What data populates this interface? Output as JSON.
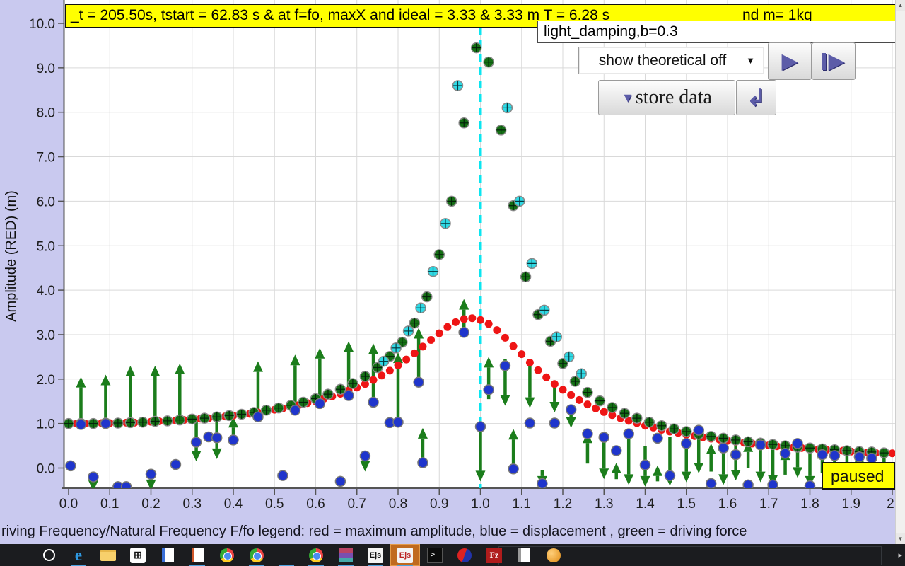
{
  "title_bar": {
    "segment1": "_t = 205.50s, tstart = 62.83 s & at f=fo, maxX and ideal = 3.33 & 3.33 m T = 6.28 s",
    "segment2": "nd m= 1kg"
  },
  "preset_field": {
    "value": "light_damping,b=0.3"
  },
  "controls": {
    "dropdown_label": "show theoretical off",
    "dropdown_arrow": "▼",
    "play_glyph": "▶",
    "step_glyph": "▶",
    "store_label": "store data",
    "store_arrow": "▼",
    "reset_glyph": "↲"
  },
  "status": {
    "paused_label": "paused"
  },
  "scrollbar": {
    "up_glyph": "▲",
    "down_glyph": "▼"
  },
  "taskbar": {
    "flyout_glyph": "▸",
    "items": [
      {
        "name": "start-icon",
        "cls": "ic-win",
        "boxes": 4,
        "running": false
      },
      {
        "name": "cortana-icon",
        "cls": "ic-cortana",
        "running": false
      },
      {
        "name": "edge-icon",
        "cls": "ic-edge",
        "label": "e",
        "running": true
      },
      {
        "name": "file-explorer-icon",
        "cls": "ic-folder",
        "running": false
      },
      {
        "name": "ms-store-icon",
        "cls": "ic-store",
        "label": "⊞",
        "running": false
      },
      {
        "name": "writer-doc-icon",
        "cls": "ic-doc-b",
        "running": false
      },
      {
        "name": "impress-doc-icon",
        "cls": "ic-doc-o",
        "running": true
      },
      {
        "name": "chrome-icon",
        "cls": "ic-chrome",
        "running": false
      },
      {
        "name": "chrome-icon-2",
        "cls": "ic-chrome",
        "running": true
      },
      {
        "name": "app-grid-icon",
        "cls": "ic-grid",
        "boxes": 9,
        "running": true
      },
      {
        "name": "chrome-icon-3",
        "cls": "ic-chrome",
        "running": true
      },
      {
        "name": "winrar-icon",
        "cls": "ic-rar",
        "running": true
      },
      {
        "name": "ejs-icon",
        "cls": "ic-ejs",
        "label": "Ejs",
        "running": true
      },
      {
        "name": "ejs-active-icon",
        "cls": "ic-ejs red",
        "label": "Ejs",
        "running": true,
        "active": true
      },
      {
        "name": "terminal-icon",
        "cls": "ic-term",
        "label": ">_",
        "running": false
      },
      {
        "name": "paint-icon",
        "cls": "ic-rb",
        "running": false
      },
      {
        "name": "filezilla-icon",
        "cls": "ic-fz",
        "label": "Fz",
        "running": false
      },
      {
        "name": "notepad-icon",
        "cls": "ic-note",
        "running": false
      },
      {
        "name": "java-icon",
        "cls": "ic-java",
        "running": false
      }
    ]
  },
  "chart_data": {
    "type": "scatter",
    "title": "_t = 205.50s, tstart = 62.83 s & at f=fo, maxX and ideal = 3.33 & 3.33 m T = 6.28 s",
    "ylabel": "Amplitude (RED) (m)",
    "legend_caption": "riving Frequency/Natural Frequency F/fo legend: red = maximum amplitude, blue = displacement , green = driving force",
    "xlim": [
      0,
      2.02
    ],
    "ylim": [
      -0.45,
      10.1
    ],
    "grid": true,
    "resonance_line_x": 1.0,
    "x_tick_values": [
      0,
      0.1,
      0.2,
      0.3,
      0.4,
      0.5,
      0.6,
      0.7,
      0.8,
      0.9,
      1.0,
      1.1,
      1.2,
      1.3,
      1.4,
      1.5,
      1.6,
      1.7,
      1.8,
      1.9,
      2.0
    ],
    "x_tick_labels": [
      "0.0",
      "0.1",
      "0.2",
      "0.3",
      "0.4",
      "0.5",
      "0.6",
      "0.7",
      "0.8",
      "0.9",
      "1.0",
      "1.1",
      "1.2",
      "1.3",
      "1.4",
      "1.5",
      "1.6",
      "1.7",
      "1.8",
      "1.9",
      "2."
    ],
    "y_tick_values": [
      0,
      1,
      2,
      3,
      4,
      5,
      6,
      7,
      8,
      9,
      10
    ],
    "y_tick_labels": [
      "0.0",
      "1.0",
      "2.0",
      "3.0",
      "4.0",
      "5.0",
      "6.0",
      "7.0",
      "8.0",
      "9.0",
      "10.0"
    ],
    "colors": {
      "red": "#ee1515",
      "green_dot": "#146e14",
      "cyan_dot": "#2fd9e4",
      "blue_dot": "#1f35cc",
      "arrow": "#1b7d1b",
      "dashed_line": "#0ae6f0",
      "grid": "#d9d9d9",
      "axis": "#555555",
      "panel": "#c9c9ef",
      "plot_bg": "#ffffff"
    },
    "series": {
      "red_max_amplitude": {
        "x_start": 0,
        "x_step": 0.02,
        "values": [
          1.0,
          1.0,
          1.0,
          1.0,
          1.01,
          1.01,
          1.01,
          1.02,
          1.02,
          1.03,
          1.04,
          1.05,
          1.06,
          1.07,
          1.08,
          1.09,
          1.11,
          1.12,
          1.14,
          1.16,
          1.18,
          1.2,
          1.22,
          1.25,
          1.27,
          1.31,
          1.34,
          1.38,
          1.42,
          1.46,
          1.5,
          1.56,
          1.61,
          1.67,
          1.74,
          1.81,
          1.89,
          1.98,
          2.08,
          2.19,
          2.31,
          2.44,
          2.58,
          2.73,
          2.88,
          3.03,
          3.17,
          3.28,
          3.35,
          3.37,
          3.33,
          3.24,
          3.1,
          2.93,
          2.74,
          2.56,
          2.37,
          2.2,
          2.04,
          1.89,
          1.76,
          1.64,
          1.53,
          1.43,
          1.34,
          1.26,
          1.19,
          1.12,
          1.06,
          1.01,
          0.95,
          0.91,
          0.86,
          0.82,
          0.79,
          0.75,
          0.72,
          0.69,
          0.66,
          0.64,
          0.61,
          0.59,
          0.57,
          0.55,
          0.53,
          0.51,
          0.49,
          0.48,
          0.46,
          0.45,
          0.43,
          0.42,
          0.41,
          0.4,
          0.39,
          0.37,
          0.36,
          0.35,
          0.34,
          0.34,
          0.33
        ]
      },
      "green_measured_amplitude": {
        "x_start": 0,
        "x_step": 0.03,
        "values": [
          1.0,
          1.0,
          1.0,
          1.01,
          1.01,
          1.02,
          1.03,
          1.05,
          1.06,
          1.08,
          1.1,
          1.12,
          1.15,
          1.18,
          1.21,
          1.25,
          1.3,
          1.35,
          1.41,
          1.48,
          1.56,
          1.66,
          1.77,
          1.9,
          2.06,
          2.26,
          2.51,
          2.83,
          3.26,
          3.85,
          4.8,
          6.0,
          7.76,
          9.45,
          9.13,
          7.6,
          5.9,
          4.3,
          3.45,
          2.85,
          2.35,
          1.95,
          1.7,
          1.51,
          1.36,
          1.23,
          1.12,
          1.03,
          0.95,
          0.88,
          0.82,
          0.76,
          0.71,
          0.67,
          0.63,
          0.59,
          0.56,
          0.53,
          0.5,
          0.47,
          0.45,
          0.43,
          0.41,
          0.39,
          0.37,
          0.36,
          0.34
        ]
      },
      "cyan_stored_amplitude": {
        "points": [
          [
            0.765,
            2.4
          ],
          [
            0.795,
            2.7
          ],
          [
            0.825,
            3.08
          ],
          [
            0.855,
            3.6
          ],
          [
            0.885,
            4.42
          ],
          [
            0.915,
            5.5
          ],
          [
            0.945,
            8.6
          ],
          [
            1.065,
            8.1
          ],
          [
            1.095,
            6.0
          ],
          [
            1.125,
            4.6
          ],
          [
            1.155,
            3.55
          ],
          [
            1.185,
            2.95
          ],
          [
            1.215,
            2.5
          ],
          [
            1.245,
            2.12
          ]
        ]
      },
      "blue_displacement": {
        "points": [
          [
            0.005,
            0.05
          ],
          [
            0.03,
            0.98
          ],
          [
            0.06,
            -0.2
          ],
          [
            0.09,
            1.0
          ],
          [
            0.12,
            -0.42
          ],
          [
            0.14,
            -0.42
          ],
          [
            0.2,
            -0.14
          ],
          [
            0.26,
            0.08
          ],
          [
            0.31,
            0.58
          ],
          [
            0.34,
            0.7
          ],
          [
            0.36,
            0.68
          ],
          [
            0.4,
            0.63
          ],
          [
            0.46,
            1.15
          ],
          [
            0.52,
            -0.17
          ],
          [
            0.55,
            1.3
          ],
          [
            0.61,
            1.45
          ],
          [
            0.66,
            -0.3
          ],
          [
            0.68,
            1.63
          ],
          [
            0.72,
            0.27
          ],
          [
            0.74,
            1.48
          ],
          [
            0.78,
            1.02
          ],
          [
            0.8,
            1.03
          ],
          [
            0.85,
            1.93
          ],
          [
            0.86,
            0.12
          ],
          [
            0.96,
            3.05
          ],
          [
            1.0,
            0.93
          ],
          [
            1.02,
            1.76
          ],
          [
            1.06,
            2.3
          ],
          [
            1.08,
            -0.02
          ],
          [
            1.12,
            1.01
          ],
          [
            1.15,
            -0.35
          ],
          [
            1.18,
            1.01
          ],
          [
            1.22,
            1.31
          ],
          [
            1.26,
            0.77
          ],
          [
            1.3,
            0.69
          ],
          [
            1.33,
            0.39
          ],
          [
            1.36,
            0.77
          ],
          [
            1.4,
            0.07
          ],
          [
            1.43,
            0.67
          ],
          [
            1.46,
            -0.17
          ],
          [
            1.5,
            0.55
          ],
          [
            1.53,
            0.85
          ],
          [
            1.56,
            -0.35
          ],
          [
            1.59,
            0.45
          ],
          [
            1.62,
            0.3
          ],
          [
            1.65,
            -0.38
          ],
          [
            1.68,
            0.52
          ],
          [
            1.71,
            -0.38
          ],
          [
            1.74,
            0.33
          ],
          [
            1.77,
            0.55
          ],
          [
            1.8,
            -0.4
          ],
          [
            1.83,
            0.3
          ],
          [
            1.86,
            0.28
          ],
          [
            1.89,
            -0.35
          ],
          [
            1.92,
            0.25
          ],
          [
            1.95,
            0.22
          ],
          [
            1.98,
            -0.3
          ]
        ]
      },
      "green_force_arrows": {
        "arrows": [
          [
            0.03,
            1.1,
            2.05
          ],
          [
            0.06,
            -0.25,
            -0.52
          ],
          [
            0.09,
            1.1,
            2.1
          ],
          [
            0.15,
            1.1,
            2.3
          ],
          [
            0.2,
            -0.2,
            -0.5
          ],
          [
            0.21,
            1.1,
            2.3
          ],
          [
            0.27,
            1.1,
            2.35
          ],
          [
            0.31,
            1.05,
            0.15
          ],
          [
            0.36,
            1.1,
            0.2
          ],
          [
            0.4,
            0.68,
            1.15
          ],
          [
            0.46,
            1.25,
            2.4
          ],
          [
            0.55,
            1.4,
            2.55
          ],
          [
            0.61,
            1.55,
            2.7
          ],
          [
            0.68,
            1.75,
            2.85
          ],
          [
            0.72,
            0.25,
            -0.08
          ],
          [
            0.74,
            1.6,
            2.8
          ],
          [
            0.8,
            1.15,
            2.6
          ],
          [
            0.85,
            2.0,
            3.15
          ],
          [
            0.86,
            0.2,
            0.9
          ],
          [
            0.96,
            3.15,
            3.8
          ],
          [
            1.0,
            0.88,
            -0.3
          ],
          [
            1.02,
            1.55,
            2.5
          ],
          [
            1.06,
            2.45,
            1.4
          ],
          [
            1.08,
            0.05,
            0.88
          ],
          [
            1.12,
            2.4,
            1.35
          ],
          [
            1.15,
            -0.05,
            -0.42
          ],
          [
            1.18,
            1.9,
            1.25
          ],
          [
            1.22,
            1.3,
            0.9
          ],
          [
            1.26,
            0.1,
            0.8
          ],
          [
            1.3,
            0.7,
            -0.25
          ],
          [
            1.33,
            -0.25,
            0.12
          ],
          [
            1.36,
            0.8,
            -0.38
          ],
          [
            1.4,
            0.5,
            -0.42
          ],
          [
            1.43,
            -0.3,
            0.06
          ],
          [
            1.46,
            0.7,
            -0.4
          ],
          [
            1.5,
            0.6,
            -0.32
          ],
          [
            1.53,
            0.9,
            -0.12
          ],
          [
            1.56,
            -0.08,
            0.55
          ],
          [
            1.59,
            0.75,
            -0.38
          ],
          [
            1.62,
            0.65,
            -0.28
          ],
          [
            1.65,
            0.0,
            0.6
          ],
          [
            1.68,
            0.55,
            -0.32
          ],
          [
            1.71,
            0.62,
            -0.4
          ],
          [
            1.74,
            -0.15,
            0.42
          ],
          [
            1.77,
            0.6,
            -0.22
          ],
          [
            1.8,
            0.45,
            -0.42
          ],
          [
            1.83,
            -0.12,
            0.45
          ],
          [
            1.86,
            0.42,
            -0.32
          ],
          [
            1.89,
            0.38,
            -0.38
          ],
          [
            1.92,
            -0.22,
            0.35
          ],
          [
            1.95,
            0.35,
            -0.32
          ],
          [
            1.98,
            0.3,
            -0.32
          ]
        ]
      }
    }
  }
}
